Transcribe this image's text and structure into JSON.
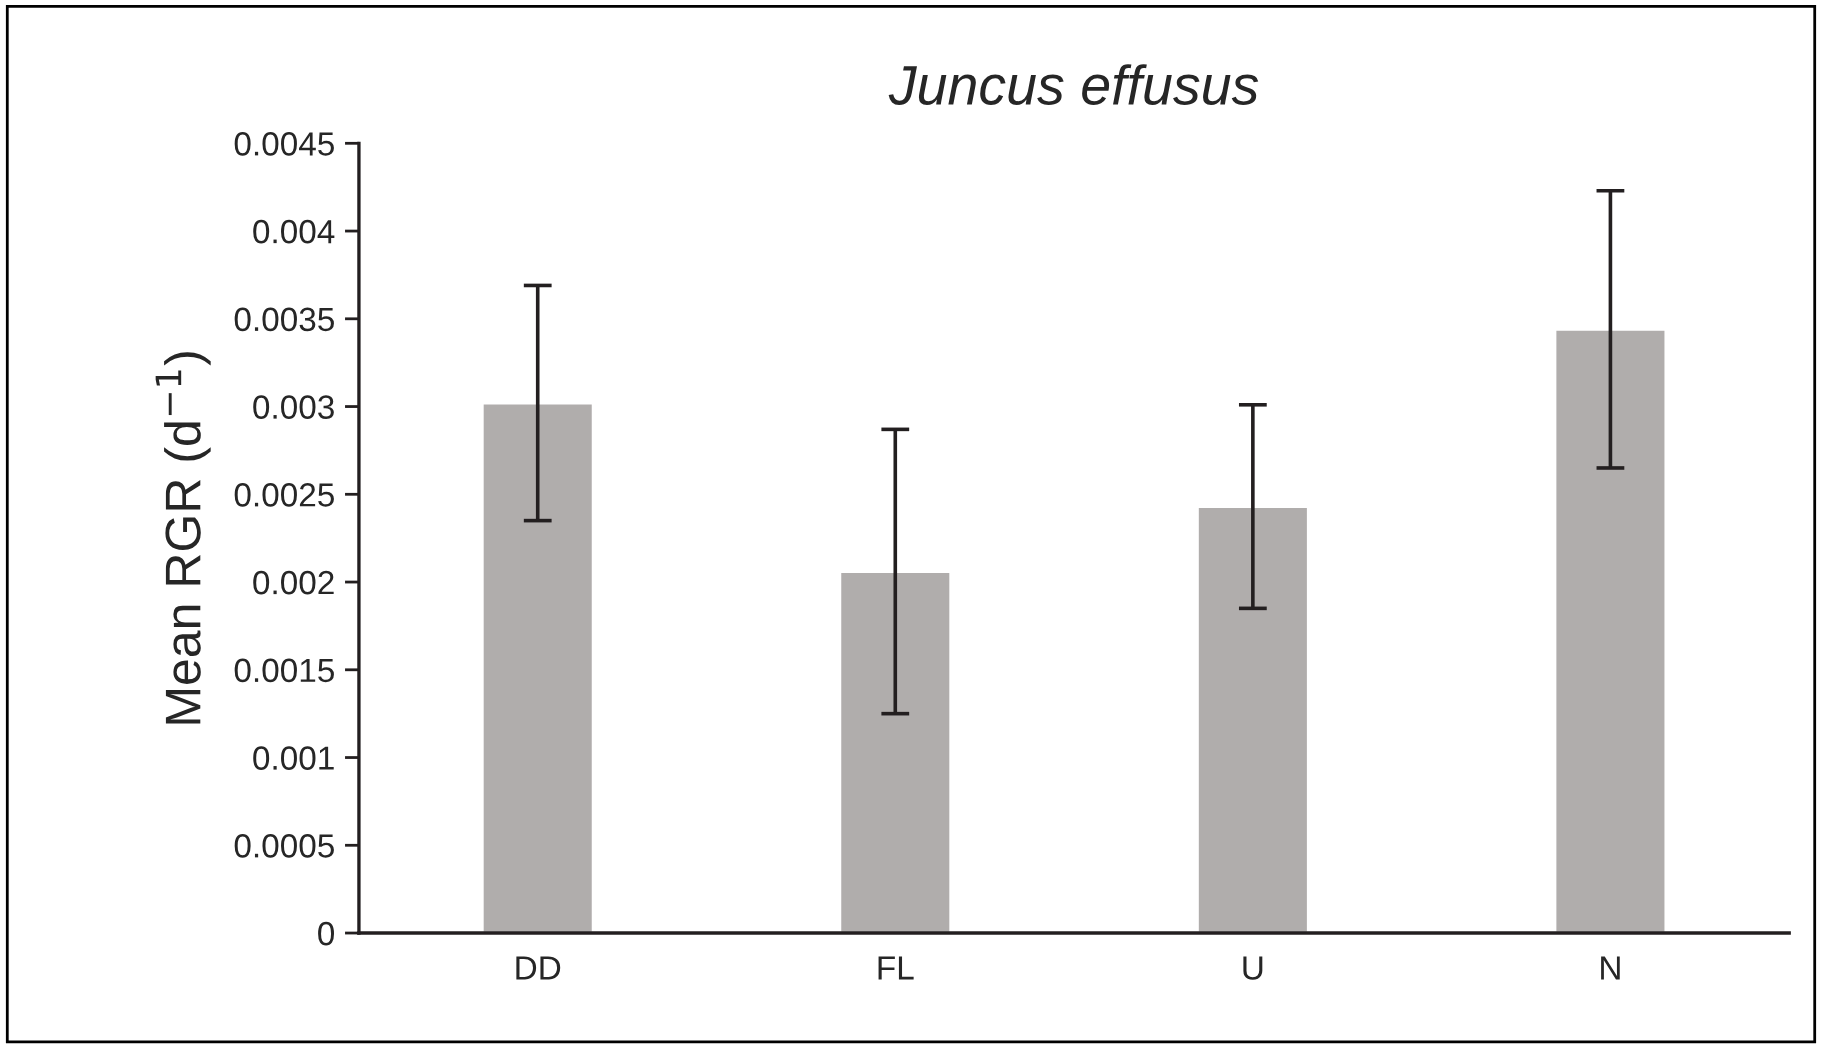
{
  "chart_data": {
    "type": "bar",
    "title": "Juncus effusus",
    "ylabel": "Mean RGR (d$^{−1}$)",
    "categories": [
      "DD",
      "FL",
      "U",
      "N"
    ],
    "values": [
      0.00302,
      0.00206,
      0.00243,
      0.00344
    ],
    "errors": [
      0.00067,
      0.00081,
      0.00058,
      0.00079
    ],
    "color": "#b0adac",
    "ylim": [
      0,
      0.0045
    ],
    "yticks": [
      {
        "value": 0,
        "label": "0"
      },
      {
        "value": 0.0005,
        "label": "0.0005"
      },
      {
        "value": 0.001,
        "label": "0.001"
      },
      {
        "value": 0.0015,
        "label": "0.0015"
      },
      {
        "value": 0.002,
        "label": "0.002"
      },
      {
        "value": 0.0025,
        "label": "0.0025"
      },
      {
        "value": 0.003,
        "label": "0.003"
      },
      {
        "value": 0.0035,
        "label": "0.0035"
      },
      {
        "value": 0.004,
        "label": "0.004"
      },
      {
        "value": 0.0045,
        "label": "0.0045"
      }
    ],
    "grid": false,
    "legend": false
  }
}
